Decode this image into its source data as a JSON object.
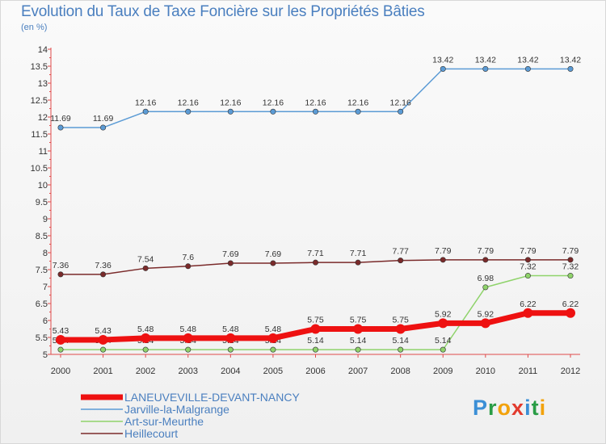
{
  "title": "Evolution du Taux de Taxe Foncière sur les Propriétés Bâties",
  "subtitle": "(en %)",
  "logo": {
    "letters": [
      {
        "ch": "P",
        "color": "#3b8fd6"
      },
      {
        "ch": "r",
        "color": "#2a9d46"
      },
      {
        "ch": "o",
        "color": "#f2a20c"
      },
      {
        "ch": "x",
        "color": "#e23b2e"
      },
      {
        "ch": "i",
        "color": "#3b8fd6"
      },
      {
        "ch": "t",
        "color": "#2a9d46"
      },
      {
        "ch": "i",
        "color": "#f2a20c"
      }
    ]
  },
  "chart_data": {
    "type": "line",
    "title": "Evolution du Taux de Taxe Foncière sur les Propriétés Bâties",
    "ylabel": "(en %)",
    "ylim": [
      5,
      14
    ],
    "yticks": [
      "5",
      "5.5",
      "6",
      "6.5",
      "7",
      "7.5",
      "8",
      "8.5",
      "9",
      "9.5",
      "10",
      "10.5",
      "11",
      "11.5",
      "12",
      "12.5",
      "13",
      "13.5",
      "14"
    ],
    "categories": [
      "2000",
      "2001",
      "2002",
      "2003",
      "2004",
      "2005",
      "2006",
      "2007",
      "2008",
      "2009",
      "2010",
      "2011",
      "2012"
    ],
    "grid": false,
    "legend_position": "bottom-left",
    "series": [
      {
        "name": "Jarville-la-Malgrange",
        "color": "#5b9bd5",
        "width": 1.5,
        "values": [
          11.69,
          11.69,
          12.16,
          12.16,
          12.16,
          12.16,
          12.16,
          12.16,
          12.16,
          13.42,
          13.42,
          13.42,
          13.42
        ],
        "labels": [
          "11.69",
          "11.69",
          "12.16",
          "12.16",
          "12.16",
          "12.16",
          "12.16",
          "12.16",
          "12.16",
          "13.42",
          "13.42",
          "13.42",
          "13.42"
        ]
      },
      {
        "name": "Heillecourt",
        "color": "#7a2a2a",
        "width": 1.5,
        "values": [
          7.36,
          7.36,
          7.54,
          7.6,
          7.69,
          7.69,
          7.71,
          7.71,
          7.77,
          7.79,
          7.79,
          7.79,
          7.79
        ],
        "labels": [
          "7.36",
          "7.36",
          "7.54",
          "7.6",
          "7.69",
          "7.69",
          "7.71",
          "7.71",
          "7.77",
          "7.79",
          "7.79",
          "7.79",
          "7.79"
        ]
      },
      {
        "name": "Art-sur-Meurthe",
        "color": "#8fd36b",
        "width": 1.5,
        "values": [
          5.14,
          5.14,
          5.14,
          5.14,
          5.14,
          5.14,
          5.14,
          5.14,
          5.14,
          5.14,
          6.98,
          7.32,
          7.32
        ],
        "labels": [
          "5.14",
          "5.14",
          "5.14",
          "5.14",
          "5.14",
          "5.14",
          "5.14",
          "5.14",
          "5.14",
          "5.14",
          "6.98",
          "7.32",
          "7.32"
        ]
      },
      {
        "name": "LANEUVEVILLE-DEVANT-NANCY",
        "color": "#ee1111",
        "width": 7,
        "values": [
          5.43,
          5.43,
          5.48,
          5.48,
          5.48,
          5.48,
          5.75,
          5.75,
          5.75,
          5.92,
          5.92,
          6.22,
          6.22
        ],
        "labels": [
          "5.43",
          "5.43",
          "5.48",
          "5.48",
          "5.48",
          "5.48",
          "5.75",
          "5.75",
          "5.75",
          "5.92",
          "5.92",
          "6.22",
          "6.22"
        ]
      }
    ],
    "legend_order": [
      "LANEUVEVILLE-DEVANT-NANCY",
      "Jarville-la-Malgrange",
      "Art-sur-Meurthe",
      "Heillecourt"
    ]
  }
}
